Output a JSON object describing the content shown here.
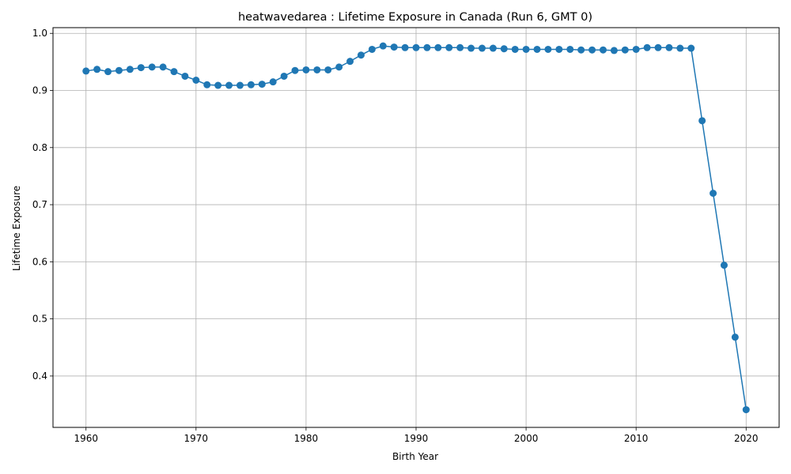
{
  "chart_data": {
    "type": "line",
    "title": "heatwavedarea : Lifetime Exposure in Canada (Run 6, GMT 0)",
    "xlabel": "Birth Year",
    "ylabel": "Lifetime Exposure",
    "xlim": [
      1957,
      2023
    ],
    "ylim": [
      0.31,
      1.01
    ],
    "xticks": [
      1960,
      1970,
      1980,
      1990,
      2000,
      2010,
      2020
    ],
    "yticks": [
      0.4,
      0.5,
      0.6,
      0.7,
      0.8,
      0.9,
      1.0
    ],
    "ytick_labels": [
      "0.4",
      "0.5",
      "0.6",
      "0.7",
      "0.8",
      "0.9",
      "1.0"
    ],
    "grid": true,
    "line_color": "#1f77b4",
    "marker": "circle",
    "x": [
      1960,
      1961,
      1962,
      1963,
      1964,
      1965,
      1966,
      1967,
      1968,
      1969,
      1970,
      1971,
      1972,
      1973,
      1974,
      1975,
      1976,
      1977,
      1978,
      1979,
      1980,
      1981,
      1982,
      1983,
      1984,
      1985,
      1986,
      1987,
      1988,
      1989,
      1990,
      1991,
      1992,
      1993,
      1994,
      1995,
      1996,
      1997,
      1998,
      1999,
      2000,
      2001,
      2002,
      2003,
      2004,
      2005,
      2006,
      2007,
      2008,
      2009,
      2010,
      2011,
      2012,
      2013,
      2014,
      2015,
      2016,
      2017,
      2018,
      2019,
      2020
    ],
    "y": [
      0.934,
      0.937,
      0.933,
      0.935,
      0.937,
      0.94,
      0.941,
      0.941,
      0.933,
      0.925,
      0.918,
      0.91,
      0.909,
      0.909,
      0.909,
      0.91,
      0.911,
      0.915,
      0.925,
      0.935,
      0.936,
      0.936,
      0.936,
      0.941,
      0.951,
      0.962,
      0.972,
      0.978,
      0.976,
      0.975,
      0.975,
      0.975,
      0.975,
      0.975,
      0.975,
      0.974,
      0.974,
      0.974,
      0.973,
      0.972,
      0.972,
      0.972,
      0.972,
      0.972,
      0.972,
      0.971,
      0.971,
      0.971,
      0.97,
      0.971,
      0.972,
      0.975,
      0.975,
      0.975,
      0.974,
      0.974,
      0.847,
      0.72,
      0.594,
      0.468,
      0.341
    ]
  }
}
